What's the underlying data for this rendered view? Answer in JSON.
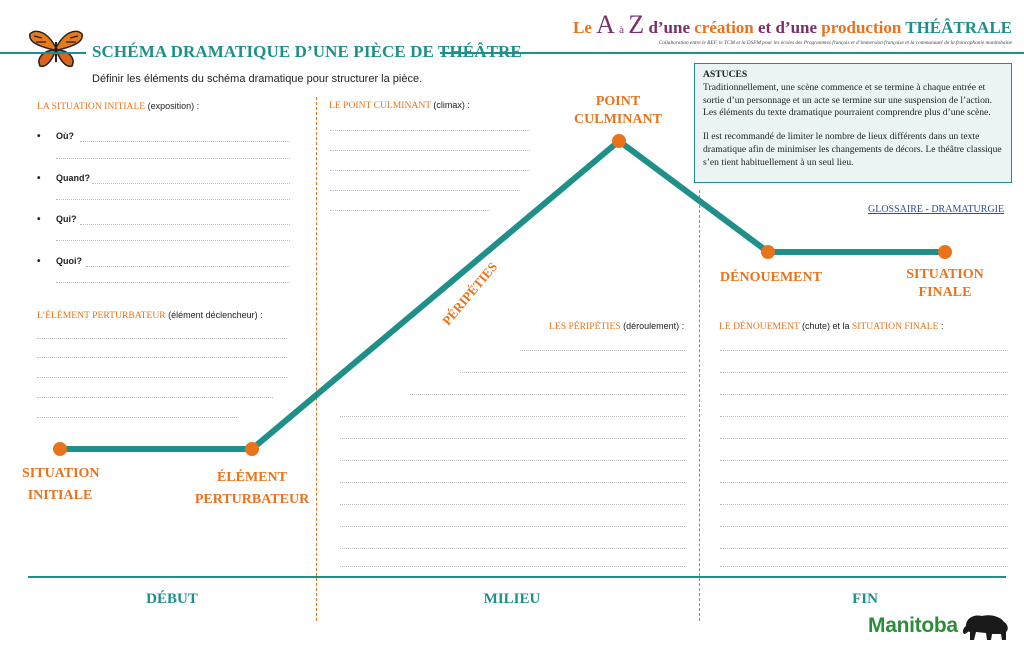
{
  "header": {
    "title": "SCHÉMA DRAMATIQUE D’UNE PIÈCE DE THÉÂTRE",
    "subtitle": "Définir les éléments du schéma dramatique pour structurer la pièce."
  },
  "series": {
    "le": "Le",
    "a": "A",
    "a_word": "à",
    "z": "Z",
    "d_une": "d’une",
    "creation": "création",
    "et": "et",
    "d_une2": "d’une",
    "production": "production",
    "theatrale": "THÉÂTRALE",
    "collaboration": "Collaboration entre le BEF, le TCM et la DSFM pour les écoles des Programmes français et d’immersion française et la communauté de la francophonie manitobaine"
  },
  "astuces": {
    "heading": "ASTUCES",
    "para1": "Traditionnellement, une scène commence et se termine à chaque entrée et sortie d’un personnage et un acte se termine sur une suspension de l’action. Les éléments du texte dramatique pourraient comprendre plus d’une scène.",
    "para2": "Il est recommandé de limiter le nombre de lieux différents dans un texte dramatique afin de minimiser les changements de décors. Le théâtre classique s’en tient habituellement à un seul lieu."
  },
  "glossary_link": "GLOSSAIRE - DRAMATURGIE",
  "sections": {
    "situation_initiale": {
      "key": "LA SITUATION INITIALE",
      "note": "(exposition) :"
    },
    "questions": [
      "Où?",
      "Quand?",
      "Qui?",
      "Quoi?"
    ],
    "element_perturbateur": {
      "key": "L’ÉLÉMENT PERTURBATEUR",
      "note": "(élément déclencheur) :"
    },
    "point_culminant": {
      "key": "LE POINT CULMINANT",
      "note": "(climax) :"
    },
    "peripeties": {
      "key": "LES PÉRIPÉTIES",
      "note": "(déroulement) :"
    },
    "denouement": {
      "key1": "LE DÉNOUEMENT",
      "note1": "(chute) et la",
      "key2": "SITUATION FINALE",
      "note2": " :"
    }
  },
  "graph_labels": {
    "situation_initiale": [
      "SITUATION",
      "INITIALE"
    ],
    "element_perturbateur": [
      "ÉLÉMENT",
      "PERTURBATEUR"
    ],
    "peripeties": "PÉRIPÉTIES",
    "point_culminant": [
      "POINT",
      "CULMINANT"
    ],
    "denouement": "DÉNOUEMENT",
    "situation_finale": [
      "SITUATION",
      "FINALE"
    ]
  },
  "phases": [
    "DÉBUT",
    "MILIEU",
    "FIN"
  ],
  "footer": {
    "brand": "Manitoba"
  },
  "colors": {
    "teal": "#1f8f8a",
    "orange": "#e8731c",
    "purple": "#7a2e6b",
    "green": "#2e8b3a"
  }
}
